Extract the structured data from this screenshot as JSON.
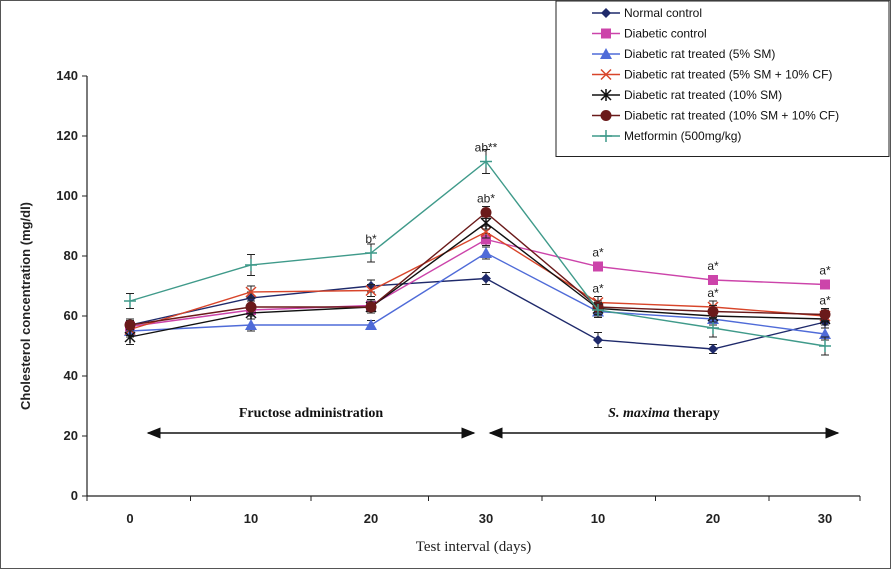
{
  "chart_data": {
    "type": "line",
    "title": "",
    "xlabel": "Test interval (days)",
    "ylabel": "Cholesterol concentration (mg/dl)",
    "ylim": [
      0,
      140
    ],
    "yticks": [
      0,
      20,
      40,
      60,
      80,
      100,
      120,
      140
    ],
    "categories": [
      "0",
      "10",
      "20",
      "30",
      "10",
      "20",
      "30"
    ],
    "grid": false,
    "legend_position": "top-right",
    "phases": [
      {
        "label_parts": [
          "Fructose administration"
        ],
        "from": 0,
        "to": 3
      },
      {
        "label_parts": [
          "S. maxima",
          "therapy"
        ],
        "from": 3,
        "to": 6
      }
    ],
    "series": [
      {
        "name": "Normal control",
        "color": "#1f2a6b",
        "marker": "diamond",
        "values": [
          57,
          66,
          70,
          72.5,
          52,
          49,
          58
        ],
        "errors": [
          2,
          2,
          2,
          2,
          2.5,
          1.5,
          2
        ]
      },
      {
        "name": "Diabetic control",
        "color": "#cc44aa",
        "marker": "square",
        "values": [
          56.5,
          62,
          63.5,
          85.5,
          76.5,
          72,
          70.5
        ],
        "errors": [
          2,
          2,
          2,
          2,
          1.5,
          1.5,
          1.5
        ]
      },
      {
        "name": "Diabetic rat treated  (5% SM)",
        "color": "#4f6bd8",
        "marker": "triangle",
        "values": [
          55,
          57,
          57,
          81,
          61.5,
          59,
          54
        ],
        "errors": [
          2,
          2,
          1.5,
          2,
          2,
          2,
          2
        ]
      },
      {
        "name": "Diabetic rat treated  (5% SM + 10% CF)",
        "color": "#d8452a",
        "marker": "x",
        "values": [
          55.5,
          68,
          68.5,
          88,
          64.5,
          63,
          60
        ],
        "errors": [
          2,
          2,
          2,
          2,
          2,
          2,
          2
        ]
      },
      {
        "name": "Diabetic rat treated  (10% SM)",
        "color": "#111111",
        "marker": "star",
        "values": [
          53,
          61,
          63,
          91,
          62.5,
          60,
          59
        ],
        "errors": [
          2.5,
          2,
          2,
          2,
          2,
          2,
          2
        ]
      },
      {
        "name": "Diabetic rat treated  (10% SM + 10% CF)",
        "color": "#6a1a1a",
        "marker": "circle",
        "values": [
          57,
          63,
          63,
          94.5,
          63,
          61.5,
          60.5
        ],
        "errors": [
          2,
          2,
          2,
          2,
          2,
          2,
          2
        ]
      },
      {
        "name": "Metformin (500mg/kg)",
        "color": "#3f9a8a",
        "marker": "plus",
        "values": [
          65,
          77,
          81,
          111.5,
          62,
          56,
          50
        ],
        "errors": [
          2.5,
          3.5,
          3,
          4,
          2,
          3,
          3
        ]
      }
    ],
    "annotations": [
      {
        "text": "b*",
        "x": 2,
        "y": 81
      },
      {
        "text": "ab**",
        "x": 3,
        "y": 111.5
      },
      {
        "text": "ab*",
        "x": 3,
        "y": 94.5
      },
      {
        "text": "a*",
        "x": 4,
        "y": 76.5
      },
      {
        "text": "a*",
        "x": 4,
        "y": 64.5
      },
      {
        "text": "a*",
        "x": 5,
        "y": 72
      },
      {
        "text": "a*",
        "x": 5,
        "y": 63
      },
      {
        "text": "a*",
        "x": 6,
        "y": 70.5
      },
      {
        "text": "a*",
        "x": 6,
        "y": 60.5
      }
    ]
  }
}
